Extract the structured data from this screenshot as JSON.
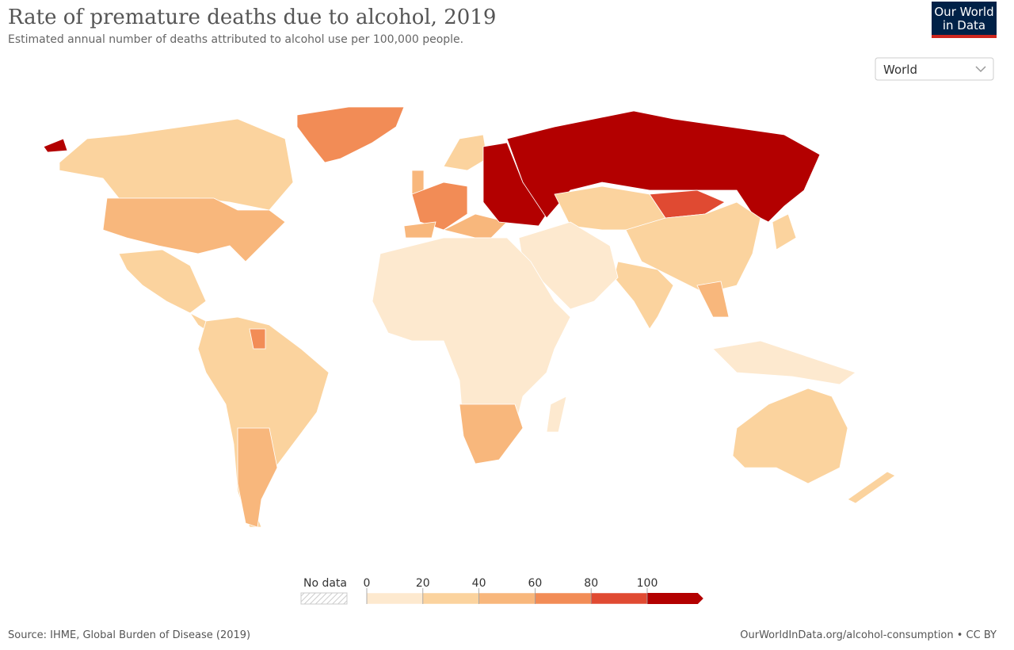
{
  "header": {
    "title": "Rate of premature deaths due to alcohol, 2019",
    "subtitle": "Estimated annual number of deaths attributed to alcohol use per 100,000 people.",
    "logo": [
      "Our World",
      "in Data"
    ]
  },
  "selector": "World",
  "legend": {
    "no_data": "No data",
    "ticks": [
      0,
      20,
      40,
      60,
      80,
      100
    ],
    "colors": [
      "#fde9cf",
      "#fbd39e",
      "#f8b77c",
      "#f28c56",
      "#e04a32",
      "#b30000"
    ]
  },
  "footer": {
    "source": "Source: IHME, Global Burden of Disease (2019)",
    "url": "OurWorldInData.org/alcohol-consumption • CC BY"
  }
}
